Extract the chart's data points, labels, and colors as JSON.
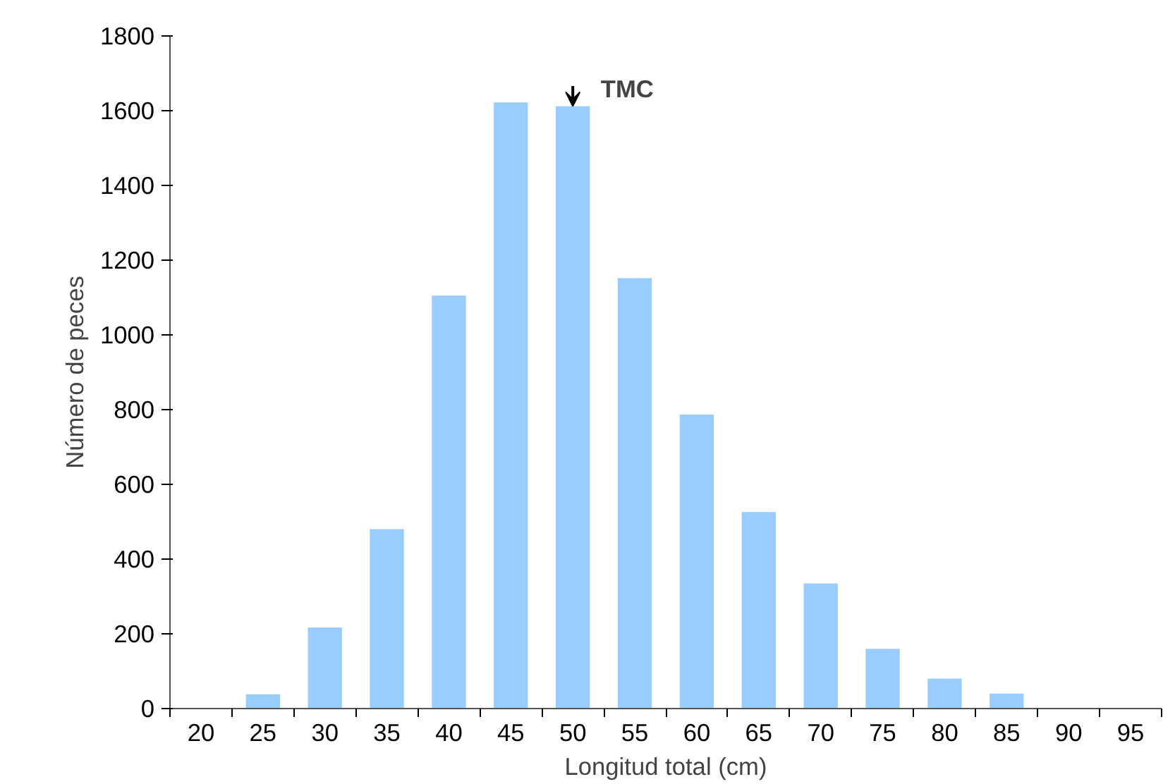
{
  "chart_data": {
    "type": "bar",
    "xlabel": "Longitud total (cm)",
    "ylabel": "Número de peces",
    "categories": [
      "20",
      "25",
      "30",
      "35",
      "40",
      "45",
      "50",
      "55",
      "60",
      "65",
      "70",
      "75",
      "80",
      "85",
      "90",
      "95"
    ],
    "values": [
      0,
      38,
      217,
      480,
      1105,
      1622,
      1612,
      1152,
      787,
      526,
      335,
      160,
      80,
      40,
      0,
      0
    ],
    "color": "#99ccff",
    "ylim": [
      0,
      1800
    ],
    "yticks": [
      0,
      200,
      400,
      600,
      800,
      1000,
      1200,
      1400,
      1600,
      1800
    ],
    "grid": false,
    "annotations": [
      {
        "text": "TMC",
        "x": "50",
        "y": 1612
      }
    ]
  }
}
